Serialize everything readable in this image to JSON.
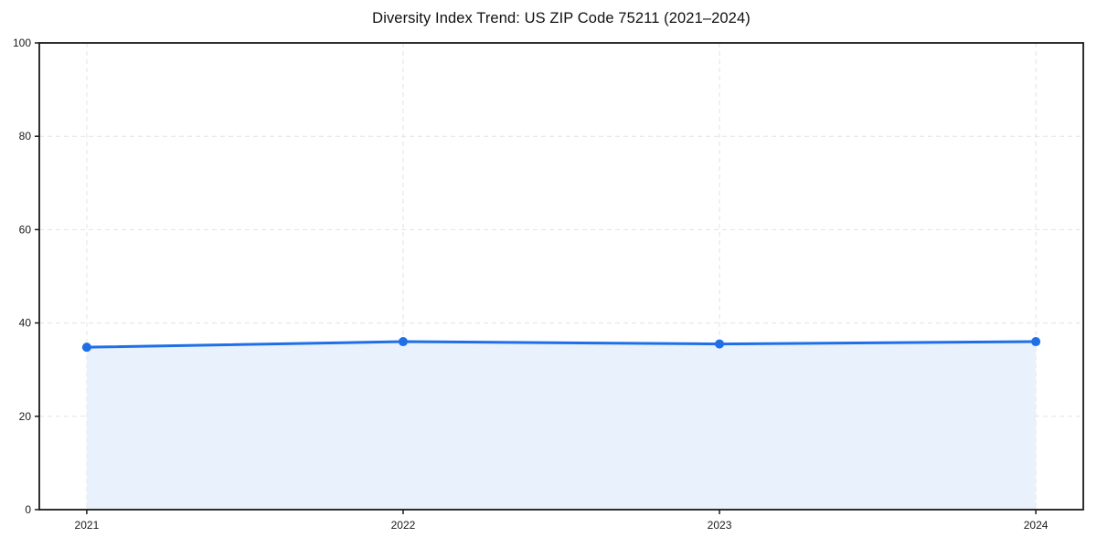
{
  "figure": {
    "background": "#ffffff"
  },
  "chart_data": {
    "type": "area",
    "title": "Diversity Index Trend: US ZIP Code 75211 (2021–2024)",
    "series_name": "Diversity Index",
    "x": [
      2021,
      2022,
      2023,
      2024
    ],
    "x_labels": [
      "2021",
      "2022",
      "2023",
      "2024"
    ],
    "values": [
      34.8,
      36.0,
      35.5,
      36.0
    ],
    "xlabel": "",
    "ylabel": "",
    "xlim": [
      2020.85,
      2024.15
    ],
    "ylim": [
      0,
      100
    ],
    "yticks": [
      0,
      20,
      40,
      60,
      80,
      100
    ],
    "ytick_labels": [
      "0",
      "20",
      "40",
      "60",
      "80",
      "100"
    ],
    "grid": true,
    "grid_style": "dashed",
    "legend": false,
    "marker": "circle",
    "colors": {
      "line": "#1e6fe8",
      "marker": "#1e6fe8",
      "fill": "#e9f1fd",
      "grid": "#e2e2e2",
      "axis": "#1a1a1a",
      "tick_text": "#1a1a1a",
      "title_text": "#111111"
    }
  }
}
